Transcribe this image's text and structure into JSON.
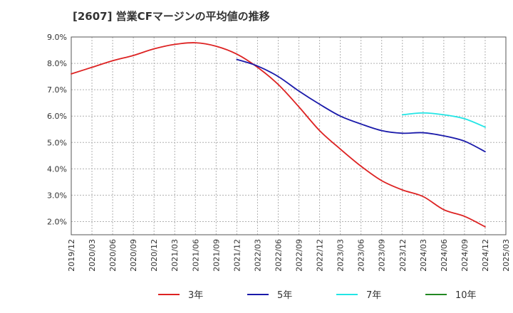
{
  "header": {
    "title": "[2607]  営業CFマージンの平均値の推移"
  },
  "chart_data": {
    "type": "line",
    "title": "[2607]  営業CFマージンの平均値の推移",
    "xlabel": "",
    "ylabel": "",
    "x_ticks": [
      "2019/12",
      "2020/03",
      "2020/06",
      "2020/09",
      "2020/12",
      "2021/03",
      "2021/06",
      "2021/09",
      "2021/12",
      "2022/03",
      "2022/06",
      "2022/09",
      "2022/12",
      "2023/03",
      "2023/06",
      "2023/09",
      "2023/12",
      "2024/03",
      "2024/06",
      "2024/09",
      "2024/12",
      "2025/03"
    ],
    "y_ticks": [
      "2.0%",
      "3.0%",
      "4.0%",
      "5.0%",
      "6.0%",
      "7.0%",
      "8.0%",
      "9.0%"
    ],
    "ylim": [
      1.5,
      9.0
    ],
    "grid": true,
    "legend_position": "bottom",
    "series": [
      {
        "name": "3年",
        "color": "#dd2222",
        "x": [
          "2019/12",
          "2020/03",
          "2020/06",
          "2020/09",
          "2020/12",
          "2021/03",
          "2021/06",
          "2021/09",
          "2021/12",
          "2022/03",
          "2022/06",
          "2022/09",
          "2022/12",
          "2023/03",
          "2023/06",
          "2023/09",
          "2023/12",
          "2024/03",
          "2024/06",
          "2024/09",
          "2024/12"
        ],
        "values": [
          7.6,
          7.85,
          8.1,
          8.3,
          8.55,
          8.72,
          8.78,
          8.65,
          8.35,
          7.85,
          7.2,
          6.35,
          5.45,
          4.75,
          4.1,
          3.55,
          3.2,
          2.95,
          2.45,
          2.2,
          1.8
        ]
      },
      {
        "name": "5年",
        "color": "#1a1aaa",
        "x": [
          "2021/12",
          "2022/03",
          "2022/06",
          "2022/09",
          "2022/12",
          "2023/03",
          "2023/06",
          "2023/09",
          "2023/12",
          "2024/03",
          "2024/06",
          "2024/09",
          "2024/12"
        ],
        "values": [
          8.15,
          7.9,
          7.5,
          6.95,
          6.45,
          6.0,
          5.7,
          5.45,
          5.35,
          5.37,
          5.25,
          5.05,
          4.65
        ]
      },
      {
        "name": "7年",
        "color": "#22e5e5",
        "x": [
          "2023/12",
          "2024/03",
          "2024/06",
          "2024/09",
          "2024/12"
        ],
        "values": [
          6.05,
          6.12,
          6.05,
          5.9,
          5.58
        ]
      },
      {
        "name": "10年",
        "color": "#228822",
        "x": [],
        "values": []
      }
    ]
  }
}
